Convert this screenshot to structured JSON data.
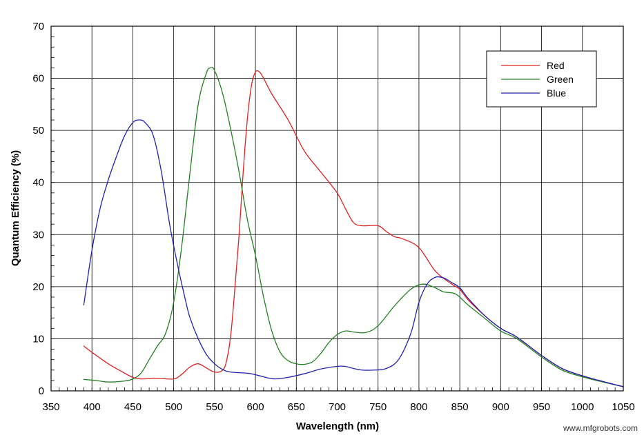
{
  "chart_data": {
    "type": "line",
    "title": "",
    "xlabel": "Wavelength (nm)",
    "ylabel": "Quantum Efficiency (%)",
    "xlim": [
      350,
      1050
    ],
    "ylim": [
      0,
      70
    ],
    "xticks": [
      350,
      400,
      450,
      500,
      550,
      600,
      650,
      700,
      750,
      800,
      850,
      900,
      950,
      1000,
      1050
    ],
    "yticks": [
      0,
      10,
      20,
      30,
      40,
      50,
      60,
      70
    ],
    "grid": true,
    "legend_position": "top-right",
    "series": [
      {
        "name": "Red",
        "color": "#e02020",
        "points": [
          [
            390,
            8.6
          ],
          [
            400,
            7.4
          ],
          [
            420,
            5.2
          ],
          [
            440,
            3.4
          ],
          [
            450,
            2.6
          ],
          [
            460,
            2.3
          ],
          [
            480,
            2.4
          ],
          [
            500,
            2.3
          ],
          [
            510,
            3.2
          ],
          [
            520,
            4.6
          ],
          [
            530,
            5.2
          ],
          [
            540,
            4.4
          ],
          [
            550,
            3.6
          ],
          [
            560,
            4.0
          ],
          [
            565,
            6.0
          ],
          [
            570,
            11.0
          ],
          [
            575,
            20.0
          ],
          [
            580,
            30.0
          ],
          [
            585,
            42.0
          ],
          [
            590,
            52.0
          ],
          [
            595,
            58.5
          ],
          [
            600,
            61.2
          ],
          [
            605,
            61.2
          ],
          [
            610,
            60.0
          ],
          [
            620,
            57.0
          ],
          [
            640,
            52.0
          ],
          [
            660,
            46.0
          ],
          [
            680,
            42.0
          ],
          [
            700,
            38.0
          ],
          [
            710,
            35.0
          ],
          [
            720,
            32.3
          ],
          [
            730,
            31.7
          ],
          [
            750,
            31.7
          ],
          [
            760,
            30.6
          ],
          [
            770,
            29.6
          ],
          [
            780,
            29.2
          ],
          [
            800,
            27.5
          ],
          [
            820,
            23.0
          ],
          [
            840,
            20.5
          ],
          [
            850,
            19.5
          ],
          [
            860,
            17.5
          ],
          [
            880,
            14.5
          ],
          [
            900,
            12.0
          ],
          [
            920,
            10.3
          ],
          [
            950,
            6.8
          ],
          [
            975,
            4.3
          ],
          [
            1000,
            2.9
          ],
          [
            1025,
            1.8
          ],
          [
            1050,
            0.8
          ]
        ]
      },
      {
        "name": "Green",
        "color": "#208020",
        "points": [
          [
            390,
            2.2
          ],
          [
            405,
            2.0
          ],
          [
            420,
            1.7
          ],
          [
            440,
            1.9
          ],
          [
            450,
            2.3
          ],
          [
            460,
            3.4
          ],
          [
            470,
            6.0
          ],
          [
            480,
            8.6
          ],
          [
            490,
            11.0
          ],
          [
            500,
            17.0
          ],
          [
            510,
            28.0
          ],
          [
            520,
            42.0
          ],
          [
            530,
            55.0
          ],
          [
            540,
            61.0
          ],
          [
            545,
            62.0
          ],
          [
            550,
            61.5
          ],
          [
            560,
            57.0
          ],
          [
            570,
            50.0
          ],
          [
            580,
            42.0
          ],
          [
            590,
            33.0
          ],
          [
            600,
            26.0
          ],
          [
            610,
            18.0
          ],
          [
            620,
            11.5
          ],
          [
            630,
            7.5
          ],
          [
            640,
            5.8
          ],
          [
            650,
            5.2
          ],
          [
            660,
            5.1
          ],
          [
            670,
            5.6
          ],
          [
            680,
            7.2
          ],
          [
            690,
            9.3
          ],
          [
            700,
            10.8
          ],
          [
            710,
            11.5
          ],
          [
            720,
            11.3
          ],
          [
            735,
            11.2
          ],
          [
            750,
            12.5
          ],
          [
            770,
            16.3
          ],
          [
            790,
            19.5
          ],
          [
            805,
            20.5
          ],
          [
            820,
            19.8
          ],
          [
            830,
            19.0
          ],
          [
            845,
            18.6
          ],
          [
            860,
            16.5
          ],
          [
            880,
            14.0
          ],
          [
            900,
            11.5
          ],
          [
            920,
            10.0
          ],
          [
            950,
            6.5
          ],
          [
            975,
            4.0
          ],
          [
            1000,
            2.7
          ],
          [
            1025,
            1.7
          ],
          [
            1050,
            0.8
          ]
        ]
      },
      {
        "name": "Blue",
        "color": "#2020b0",
        "points": [
          [
            390,
            16.5
          ],
          [
            400,
            27.0
          ],
          [
            410,
            35.0
          ],
          [
            420,
            40.5
          ],
          [
            430,
            45.0
          ],
          [
            440,
            49.0
          ],
          [
            450,
            51.5
          ],
          [
            458,
            52.0
          ],
          [
            465,
            51.5
          ],
          [
            475,
            49.0
          ],
          [
            485,
            42.0
          ],
          [
            495,
            32.0
          ],
          [
            505,
            24.0
          ],
          [
            515,
            17.0
          ],
          [
            520,
            14.0
          ],
          [
            530,
            10.0
          ],
          [
            540,
            7.0
          ],
          [
            550,
            5.2
          ],
          [
            560,
            4.1
          ],
          [
            570,
            3.6
          ],
          [
            590,
            3.4
          ],
          [
            600,
            3.1
          ],
          [
            615,
            2.5
          ],
          [
            625,
            2.3
          ],
          [
            640,
            2.6
          ],
          [
            660,
            3.3
          ],
          [
            680,
            4.2
          ],
          [
            700,
            4.7
          ],
          [
            710,
            4.7
          ],
          [
            720,
            4.3
          ],
          [
            730,
            4.0
          ],
          [
            745,
            4.0
          ],
          [
            760,
            4.3
          ],
          [
            775,
            6.0
          ],
          [
            790,
            11.0
          ],
          [
            800,
            17.0
          ],
          [
            810,
            20.5
          ],
          [
            820,
            21.8
          ],
          [
            830,
            21.7
          ],
          [
            840,
            20.8
          ],
          [
            850,
            19.8
          ],
          [
            860,
            17.8
          ],
          [
            880,
            14.5
          ],
          [
            900,
            12.0
          ],
          [
            920,
            10.3
          ],
          [
            950,
            6.8
          ],
          [
            975,
            4.3
          ],
          [
            1000,
            2.9
          ],
          [
            1025,
            1.8
          ],
          [
            1050,
            0.8
          ]
        ]
      }
    ],
    "legend": [
      "Red",
      "Green",
      "Blue"
    ]
  },
  "watermark": "www.mfgrobots.com"
}
